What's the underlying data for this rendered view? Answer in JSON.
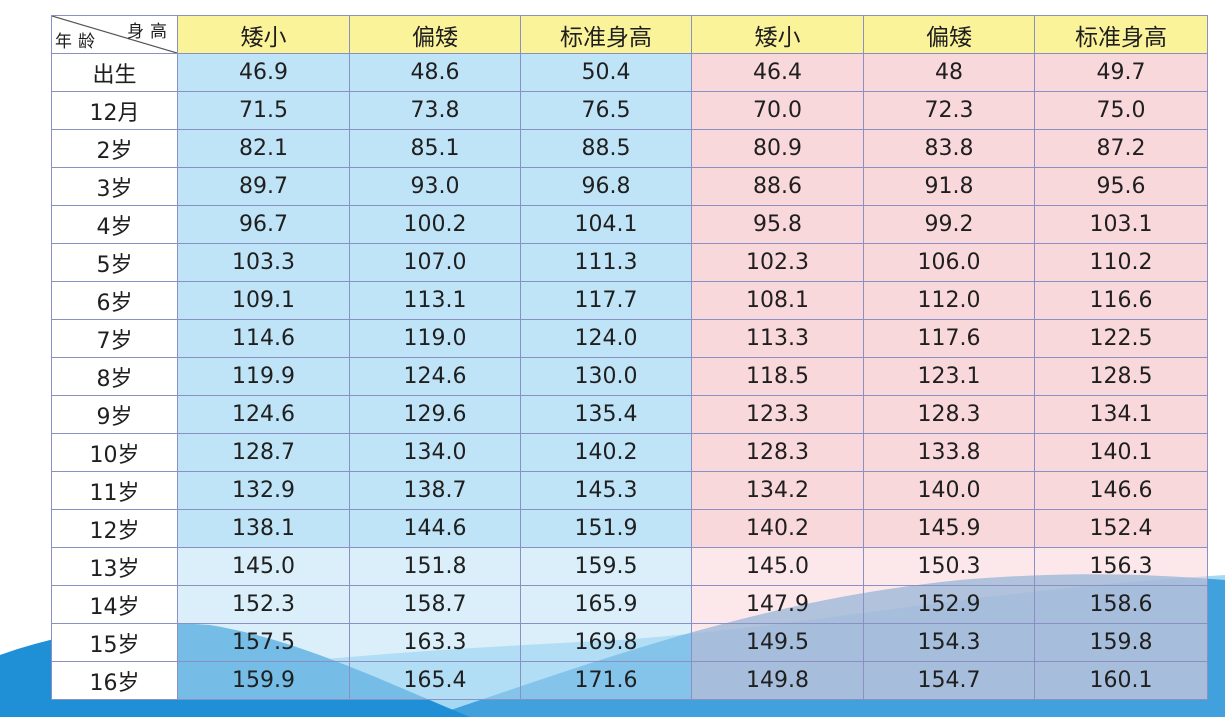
{
  "header": {
    "corner_top": "身高",
    "corner_bottom": "年龄",
    "boys": [
      "矮小",
      "偏矮",
      "标准身高"
    ],
    "girls": [
      "矮小",
      "偏矮",
      "标准身高"
    ]
  },
  "rows": [
    {
      "age": "出生",
      "boys": [
        "46.9",
        "48.6",
        "50.4"
      ],
      "girls": [
        "46.4",
        "48",
        "49.7"
      ]
    },
    {
      "age": "12月",
      "boys": [
        "71.5",
        "73.8",
        "76.5"
      ],
      "girls": [
        "70.0",
        "72.3",
        "75.0"
      ]
    },
    {
      "age": "2岁",
      "boys": [
        "82.1",
        "85.1",
        "88.5"
      ],
      "girls": [
        "80.9",
        "83.8",
        "87.2"
      ]
    },
    {
      "age": "3岁",
      "boys": [
        "89.7",
        "93.0",
        "96.8"
      ],
      "girls": [
        "88.6",
        "91.8",
        "95.6"
      ]
    },
    {
      "age": "4岁",
      "boys": [
        "96.7",
        "100.2",
        "104.1"
      ],
      "girls": [
        "95.8",
        "99.2",
        "103.1"
      ]
    },
    {
      "age": "5岁",
      "boys": [
        "103.3",
        "107.0",
        "111.3"
      ],
      "girls": [
        "102.3",
        "106.0",
        "110.2"
      ]
    },
    {
      "age": "6岁",
      "boys": [
        "109.1",
        "113.1",
        "117.7"
      ],
      "girls": [
        "108.1",
        "112.0",
        "116.6"
      ]
    },
    {
      "age": "7岁",
      "boys": [
        "114.6",
        "119.0",
        "124.0"
      ],
      "girls": [
        "113.3",
        "117.6",
        "122.5"
      ]
    },
    {
      "age": "8岁",
      "boys": [
        "119.9",
        "124.6",
        "130.0"
      ],
      "girls": [
        "118.5",
        "123.1",
        "128.5"
      ]
    },
    {
      "age": "9岁",
      "boys": [
        "124.6",
        "129.6",
        "135.4"
      ],
      "girls": [
        "123.3",
        "128.3",
        "134.1"
      ]
    },
    {
      "age": "10岁",
      "boys": [
        "128.7",
        "134.0",
        "140.2"
      ],
      "girls": [
        "128.3",
        "133.8",
        "140.1"
      ]
    },
    {
      "age": "11岁",
      "boys": [
        "132.9",
        "138.7",
        "145.3"
      ],
      "girls": [
        "134.2",
        "140.0",
        "146.6"
      ]
    },
    {
      "age": "12岁",
      "boys": [
        "138.1",
        "144.6",
        "151.9"
      ],
      "girls": [
        "140.2",
        "145.9",
        "152.4"
      ]
    },
    {
      "age": "13岁",
      "boys": [
        "145.0",
        "151.8",
        "159.5"
      ],
      "girls": [
        "145.0",
        "150.3",
        "156.3"
      ]
    },
    {
      "age": "14岁",
      "boys": [
        "152.3",
        "158.7",
        "165.9"
      ],
      "girls": [
        "147.9",
        "152.9",
        "158.6"
      ]
    },
    {
      "age": "15岁",
      "boys": [
        "157.5",
        "163.3",
        "169.8"
      ],
      "girls": [
        "149.5",
        "154.3",
        "159.8"
      ]
    },
    {
      "age": "16岁",
      "boys": [
        "159.9",
        "165.4",
        "171.6"
      ],
      "girls": [
        "149.8",
        "154.7",
        "160.1"
      ]
    }
  ],
  "colors": {
    "header_bg": "#fbf39a",
    "boys_bg": "#bbe2f6",
    "girls_bg": "#f9d5d9",
    "grid": "#8a8fc4",
    "wave_dark": "#1f8fd6",
    "wave_light": "#5bb8ea"
  }
}
